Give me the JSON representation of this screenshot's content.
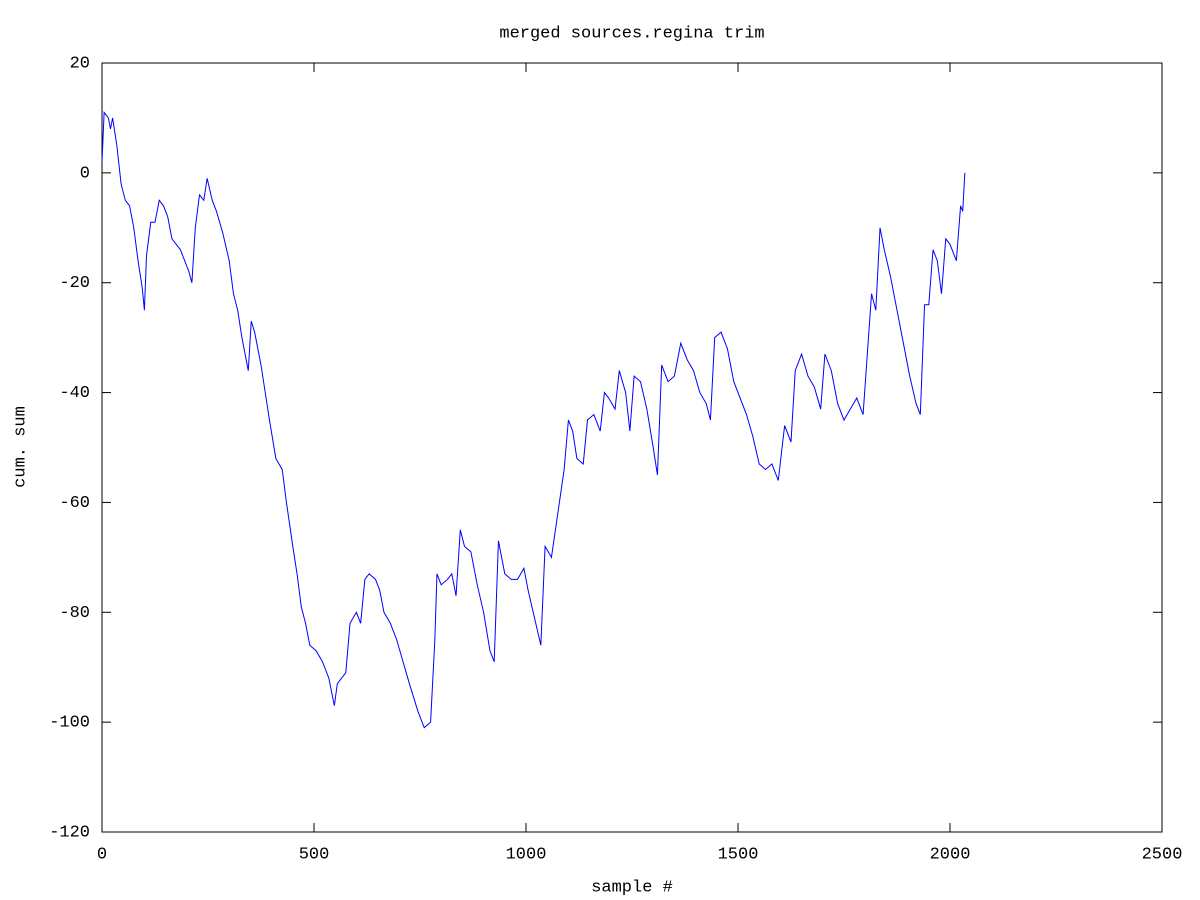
{
  "chart_data": {
    "type": "line",
    "title": "merged sources.regina trim",
    "xlabel": "sample #",
    "ylabel": "cum. sum",
    "xlim": [
      0,
      2500
    ],
    "xticks": [
      0,
      500,
      1000,
      1500,
      2000,
      2500
    ],
    "ylim": [
      -120,
      20
    ],
    "yticks": [
      -120,
      -100,
      -80,
      -60,
      -40,
      -20,
      0,
      20
    ],
    "grid": false,
    "series": [
      {
        "color": "#0000ff",
        "x": [
          0,
          5,
          15,
          20,
          25,
          35,
          45,
          55,
          65,
          75,
          85,
          95,
          100,
          105,
          115,
          125,
          135,
          145,
          155,
          165,
          175,
          185,
          195,
          205,
          212,
          220,
          230,
          240,
          248,
          260,
          270,
          285,
          300,
          310,
          320,
          330,
          345,
          352,
          360,
          375,
          385,
          395,
          410,
          425,
          435,
          450,
          460,
          470,
          480,
          490,
          505,
          520,
          535,
          548,
          555,
          565,
          575,
          585,
          600,
          610,
          620,
          630,
          645,
          655,
          665,
          680,
          695,
          710,
          725,
          745,
          760,
          775,
          785,
          790,
          800,
          815,
          825,
          835,
          845,
          855,
          870,
          885,
          900,
          915,
          925,
          935,
          950,
          965,
          980,
          995,
          1005,
          1020,
          1035,
          1045,
          1060,
          1075,
          1090,
          1100,
          1110,
          1120,
          1135,
          1145,
          1160,
          1175,
          1185,
          1195,
          1210,
          1220,
          1235,
          1245,
          1255,
          1270,
          1285,
          1300,
          1310,
          1320,
          1335,
          1350,
          1365,
          1380,
          1395,
          1410,
          1425,
          1435,
          1445,
          1460,
          1475,
          1490,
          1505,
          1520,
          1535,
          1550,
          1565,
          1580,
          1595,
          1610,
          1625,
          1635,
          1650,
          1665,
          1680,
          1695,
          1705,
          1720,
          1735,
          1750,
          1765,
          1780,
          1795,
          1805,
          1815,
          1825,
          1835,
          1845,
          1860,
          1875,
          1890,
          1905,
          1920,
          1930,
          1940,
          1950,
          1960,
          1970,
          1980,
          1990,
          2000,
          2015,
          2025,
          2030,
          2035
        ],
        "values": [
          2,
          11,
          10,
          8,
          10,
          5,
          -2,
          -5,
          -6,
          -10,
          -16,
          -21,
          -25,
          -15,
          -9,
          -9,
          -5,
          -6,
          -8,
          -12,
          -13,
          -14,
          -16,
          -18,
          -20,
          -10,
          -4,
          -5,
          -1,
          -5,
          -7,
          -11,
          -16,
          -22,
          -25,
          -30,
          -36,
          -27,
          -29,
          -35,
          -40,
          -45,
          -52,
          -54,
          -60,
          -68,
          -73,
          -79,
          -82,
          -86,
          -87,
          -89,
          -92,
          -97,
          -93,
          -92,
          -91,
          -82,
          -80,
          -82,
          -74,
          -73,
          -74,
          -76,
          -80,
          -82,
          -85,
          -89,
          -93,
          -98,
          -101,
          -100,
          -85,
          -73,
          -75,
          -74,
          -73,
          -77,
          -65,
          -68,
          -69,
          -75,
          -80,
          -87,
          -89,
          -67,
          -73,
          -74,
          -74,
          -72,
          -76,
          -81,
          -86,
          -68,
          -70,
          -62,
          -54,
          -45,
          -47,
          -52,
          -53,
          -45,
          -44,
          -47,
          -40,
          -41,
          -43,
          -36,
          -40,
          -47,
          -37,
          -38,
          -43,
          -50,
          -55,
          -35,
          -38,
          -37,
          -31,
          -34,
          -36,
          -40,
          -42,
          -45,
          -30,
          -29,
          -32,
          -38,
          -41,
          -44,
          -48,
          -53,
          -54,
          -53,
          -56,
          -46,
          -49,
          -36,
          -33,
          -37,
          -39,
          -43,
          -33,
          -36,
          -42,
          -45,
          -43,
          -41,
          -44,
          -33,
          -22,
          -25,
          -10,
          -14,
          -19,
          -25,
          -31,
          -37,
          -42,
          -44,
          -24,
          -24,
          -14,
          -16,
          -22,
          -12,
          -13,
          -16,
          -6,
          -7,
          0
        ]
      }
    ]
  }
}
